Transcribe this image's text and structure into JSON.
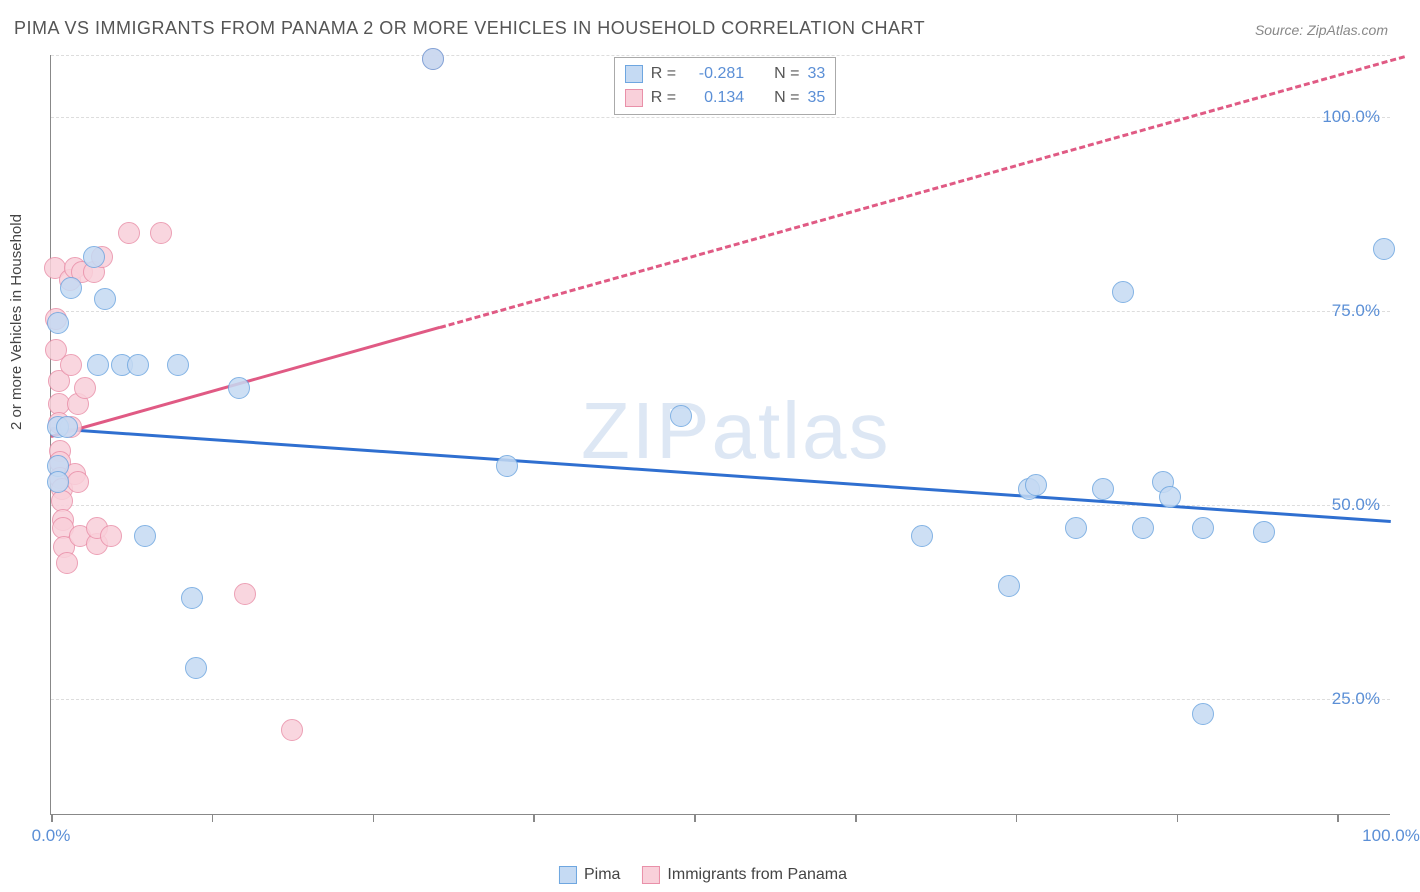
{
  "chart": {
    "type": "scatter",
    "title": "PIMA VS IMMIGRANTS FROM PANAMA 2 OR MORE VEHICLES IN HOUSEHOLD CORRELATION CHART",
    "source_label": "Source: ZipAtlas.com",
    "watermark": "ZIPatlas",
    "ylabel": "2 or more Vehicles in Household",
    "xlim": [
      0,
      100
    ],
    "ylim": [
      10,
      108
    ],
    "x_ticks": [
      0,
      12,
      24,
      36,
      48,
      60,
      72,
      84,
      96
    ],
    "x_tick_labels": {
      "0": "0.0%",
      "100": "100.0%"
    },
    "y_gridlines": [
      25,
      50,
      75,
      100,
      108
    ],
    "y_tick_labels": {
      "25": "25.0%",
      "50": "50.0%",
      "75": "75.0%",
      "100": "100.0%"
    },
    "tick_label_color": "#5b8fd6",
    "background_color": "#ffffff",
    "grid_color": "#dddddd",
    "axis_color": "#888888",
    "marker_radius": 11,
    "marker_stroke_width": 1.5,
    "trend_line_width": 3,
    "series": [
      {
        "name": "Pima",
        "color_fill": "#c5daf3",
        "color_stroke": "#6ea6e0",
        "trend_color": "#2f6fd0",
        "R": -0.281,
        "N": 33,
        "trend": {
          "x1": 0,
          "y1": 60,
          "x2": 100,
          "y2": 48,
          "solid_until_x": 100
        },
        "points": [
          [
            0.5,
            73.5
          ],
          [
            0.5,
            60
          ],
          [
            0.5,
            55
          ],
          [
            0.5,
            53
          ],
          [
            1.2,
            60
          ],
          [
            1.5,
            78
          ],
          [
            3.2,
            82
          ],
          [
            3.5,
            68
          ],
          [
            4.0,
            76.5
          ],
          [
            5.3,
            68
          ],
          [
            6.5,
            68
          ],
          [
            7.0,
            46
          ],
          [
            9.5,
            68
          ],
          [
            10.5,
            38
          ],
          [
            10.8,
            29
          ],
          [
            14.0,
            65
          ],
          [
            28.5,
            107.5
          ],
          [
            34.0,
            55
          ],
          [
            47.0,
            61.5
          ],
          [
            65.0,
            46
          ],
          [
            71.5,
            39.5
          ],
          [
            73.0,
            52
          ],
          [
            73.5,
            52.5
          ],
          [
            76.5,
            47
          ],
          [
            78.5,
            52
          ],
          [
            80.0,
            77.5
          ],
          [
            81.5,
            47
          ],
          [
            83.0,
            53
          ],
          [
            83.5,
            51
          ],
          [
            86.0,
            47
          ],
          [
            86.0,
            23
          ],
          [
            90.5,
            46.5
          ],
          [
            99.5,
            83
          ]
        ]
      },
      {
        "name": "Immigrants from Panama",
        "color_fill": "#f9d0da",
        "color_stroke": "#e990a9",
        "trend_color": "#e05a84",
        "R": 0.134,
        "N": 35,
        "trend": {
          "x1": 0,
          "y1": 59,
          "x2": 101,
          "y2": 108,
          "solid_until_x": 29
        },
        "points": [
          [
            0.3,
            80.5
          ],
          [
            0.4,
            74
          ],
          [
            0.4,
            70
          ],
          [
            0.6,
            66
          ],
          [
            0.6,
            63
          ],
          [
            0.6,
            60.5
          ],
          [
            0.7,
            57
          ],
          [
            0.7,
            55.5
          ],
          [
            0.7,
            53.5
          ],
          [
            0.8,
            52
          ],
          [
            0.8,
            50.5
          ],
          [
            0.9,
            48
          ],
          [
            0.9,
            47
          ],
          [
            1.0,
            44.5
          ],
          [
            1.2,
            42.5
          ],
          [
            1.4,
            79
          ],
          [
            1.5,
            68
          ],
          [
            1.5,
            60
          ],
          [
            1.8,
            54
          ],
          [
            1.8,
            80.5
          ],
          [
            2.0,
            63
          ],
          [
            2.0,
            53
          ],
          [
            2.2,
            46
          ],
          [
            2.3,
            80
          ],
          [
            2.5,
            65
          ],
          [
            3.2,
            80
          ],
          [
            3.4,
            45
          ],
          [
            3.4,
            47
          ],
          [
            3.8,
            82
          ],
          [
            4.5,
            46
          ],
          [
            5.8,
            85
          ],
          [
            8.2,
            85
          ],
          [
            14.5,
            38.5
          ],
          [
            18.0,
            21
          ],
          [
            28.5,
            107.5
          ]
        ]
      }
    ],
    "legend_top": {
      "rows": [
        {
          "swatch_series": 0,
          "r_label": "R =",
          "r_value": "-0.281",
          "n_label": "N =",
          "n_value": "33"
        },
        {
          "swatch_series": 1,
          "r_label": "R =",
          "r_value": " 0.134",
          "n_label": "N =",
          "n_value": "35"
        }
      ],
      "label_color": "#555555",
      "value_color": "#5b8fd6"
    },
    "legend_bottom": {
      "items": [
        {
          "series": 0,
          "label": "Pima"
        },
        {
          "series": 1,
          "label": "Immigrants from Panama"
        }
      ]
    }
  }
}
